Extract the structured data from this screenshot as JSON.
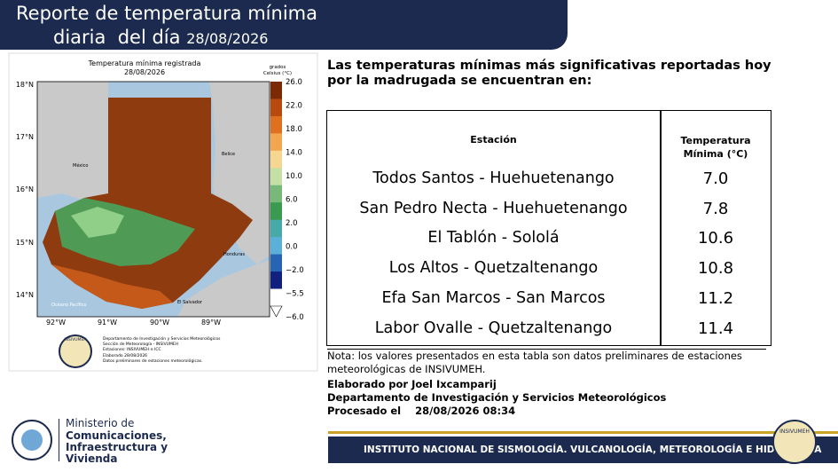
{
  "header": {
    "title_line1": "Reporte de temperatura mínima",
    "title_line2": "diaria  del día",
    "date": "28/08/2026"
  },
  "map": {
    "title": "Temperatura mínima registrada",
    "date": "28/08/2026",
    "colorbar_unit_1": "grados",
    "colorbar_unit_2": "Celsius (°C)",
    "colorbar_labels": [
      "26.0",
      "22.0",
      "18.0",
      "14.0",
      "10.0",
      "6.0",
      "2.0",
      "0.0",
      "−2.0",
      "−5.5",
      "−6.0"
    ],
    "lat_labels": [
      "18°N",
      "17°N",
      "16°N",
      "15°N",
      "14°N"
    ],
    "lon_labels": [
      "92°W",
      "91°W",
      "90°W",
      "89°W"
    ],
    "place_labels": {
      "mexico": "México",
      "belice": "Belice",
      "honduras": "Honduras",
      "el_salvador": "El Salvador",
      "ocean": "Océano Pacífico"
    },
    "footer_lines": [
      "Departamento de Investigación y Servicios Meteorológicos",
      "Sección de Meteorología - INSIVUMEH",
      "Estaciones: INSIVUMEH e ICC",
      "Elaborado 28/08/2026",
      "Datos preliminares de estaciones meteorológicas."
    ],
    "logo_text": "INSIVUMEH"
  },
  "intro": "Las temperaturas mínimas más significativas reportadas hoy por la madrugada se encuentran en:",
  "table": {
    "headers": [
      "Estación",
      "Temperatura Mínima (°C)"
    ],
    "rows": [
      [
        "Todos Santos - Huehuetenango",
        "7.0"
      ],
      [
        "San Pedro Necta - Huehuetenango",
        "7.8"
      ],
      [
        "El Tablón - Sololá",
        "10.6"
      ],
      [
        "Los Altos - Quetzaltenango",
        "10.8"
      ],
      [
        "Efa San Marcos - San Marcos",
        "11.2"
      ],
      [
        "Labor Ovalle - Quetzaltenango",
        "11.4"
      ]
    ]
  },
  "note": "Nota: los valores presentados en esta tabla son datos preliminares de estaciones meteorológicas de INSIVUMEH.",
  "credits": {
    "author": "Elaborado por Joel Ixcamparij",
    "department": "Departamento de Investigación y Servicios Meteorológicos",
    "processed_label": "Procesado el",
    "processed_value": "28/08/2026 08:34"
  },
  "footer": {
    "ministry_1": "Ministerio de",
    "ministry_2": "Comunicaciones,",
    "ministry_3": "Infraestructura y",
    "ministry_4": "Vivienda",
    "institute": "INSTITUTO NACIONAL DE SISMOLOGÍA. VULCANOLOGÍA, METEOROLOGÍA E HIDROLOGÍA",
    "logo_text": "INSIVUMEH"
  }
}
